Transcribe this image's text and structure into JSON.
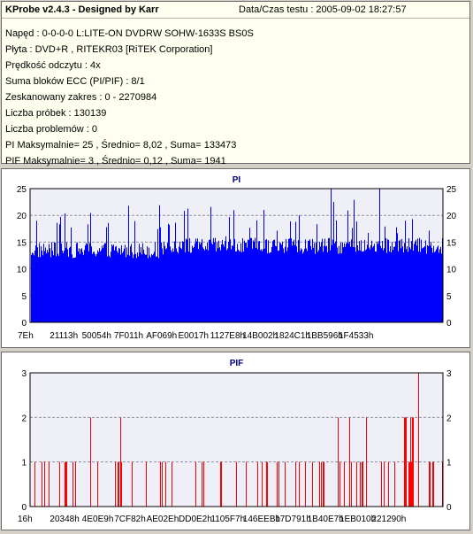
{
  "info": {
    "title": "KProbe v2.4.3 - Designed by Karr",
    "date": "Data/Czas testu : 2005-09-02 18:27:57",
    "rows": [
      "Napęd : 0-0-0-0 L:LITE-ON DVDRW SOHW-1633S BS0S",
      "Płyta : DVD+R , RITEKR03 [RiTEK Corporation]",
      "Prędkość odczytu : 4x",
      "Suma bloków ECC (PI/PIF) : 8/1",
      "Zeskanowany zakres : 0 - 2270984",
      "Liczba próbek : 130139",
      "Liczba problemów : 0",
      "PI Maksymalnie= 25 , Średnio= 8,02 , Suma= 133473",
      "PIF Maksymalnie= 3 , Średnio= 0,12 , Suma= 1941"
    ]
  },
  "chart_data": [
    {
      "type": "bar",
      "title": "PI",
      "ylim": [
        0,
        25
      ],
      "yticks": [
        0,
        5,
        10,
        15,
        20,
        25
      ],
      "xticks": [
        "7Eh",
        "21113h",
        "50054h",
        "7F011h",
        "AF069h",
        "E0017h",
        "1127E8h",
        "14B002h",
        "1824C1h",
        "1BB596h",
        "1F4533h"
      ],
      "x_range": [
        "0",
        "2270984"
      ],
      "max": 25,
      "average": 8.02,
      "color": "#0000ff",
      "grid": true
    },
    {
      "type": "bar",
      "title": "PIF",
      "ylim": [
        0,
        3
      ],
      "yticks": [
        0,
        1,
        2,
        3
      ],
      "xticks": [
        "16h",
        "20348h",
        "4E0E9h",
        "7CF82h",
        "AE02Eh",
        "DD0E2h",
        "1105F7h",
        "146EEBh",
        "17D791h",
        "1B40E7h",
        "1EB010h",
        "221290h"
      ],
      "x_range": [
        "0",
        "2270984"
      ],
      "max": 3,
      "average": 0.12,
      "color": "#ff0000",
      "grid": true
    }
  ]
}
